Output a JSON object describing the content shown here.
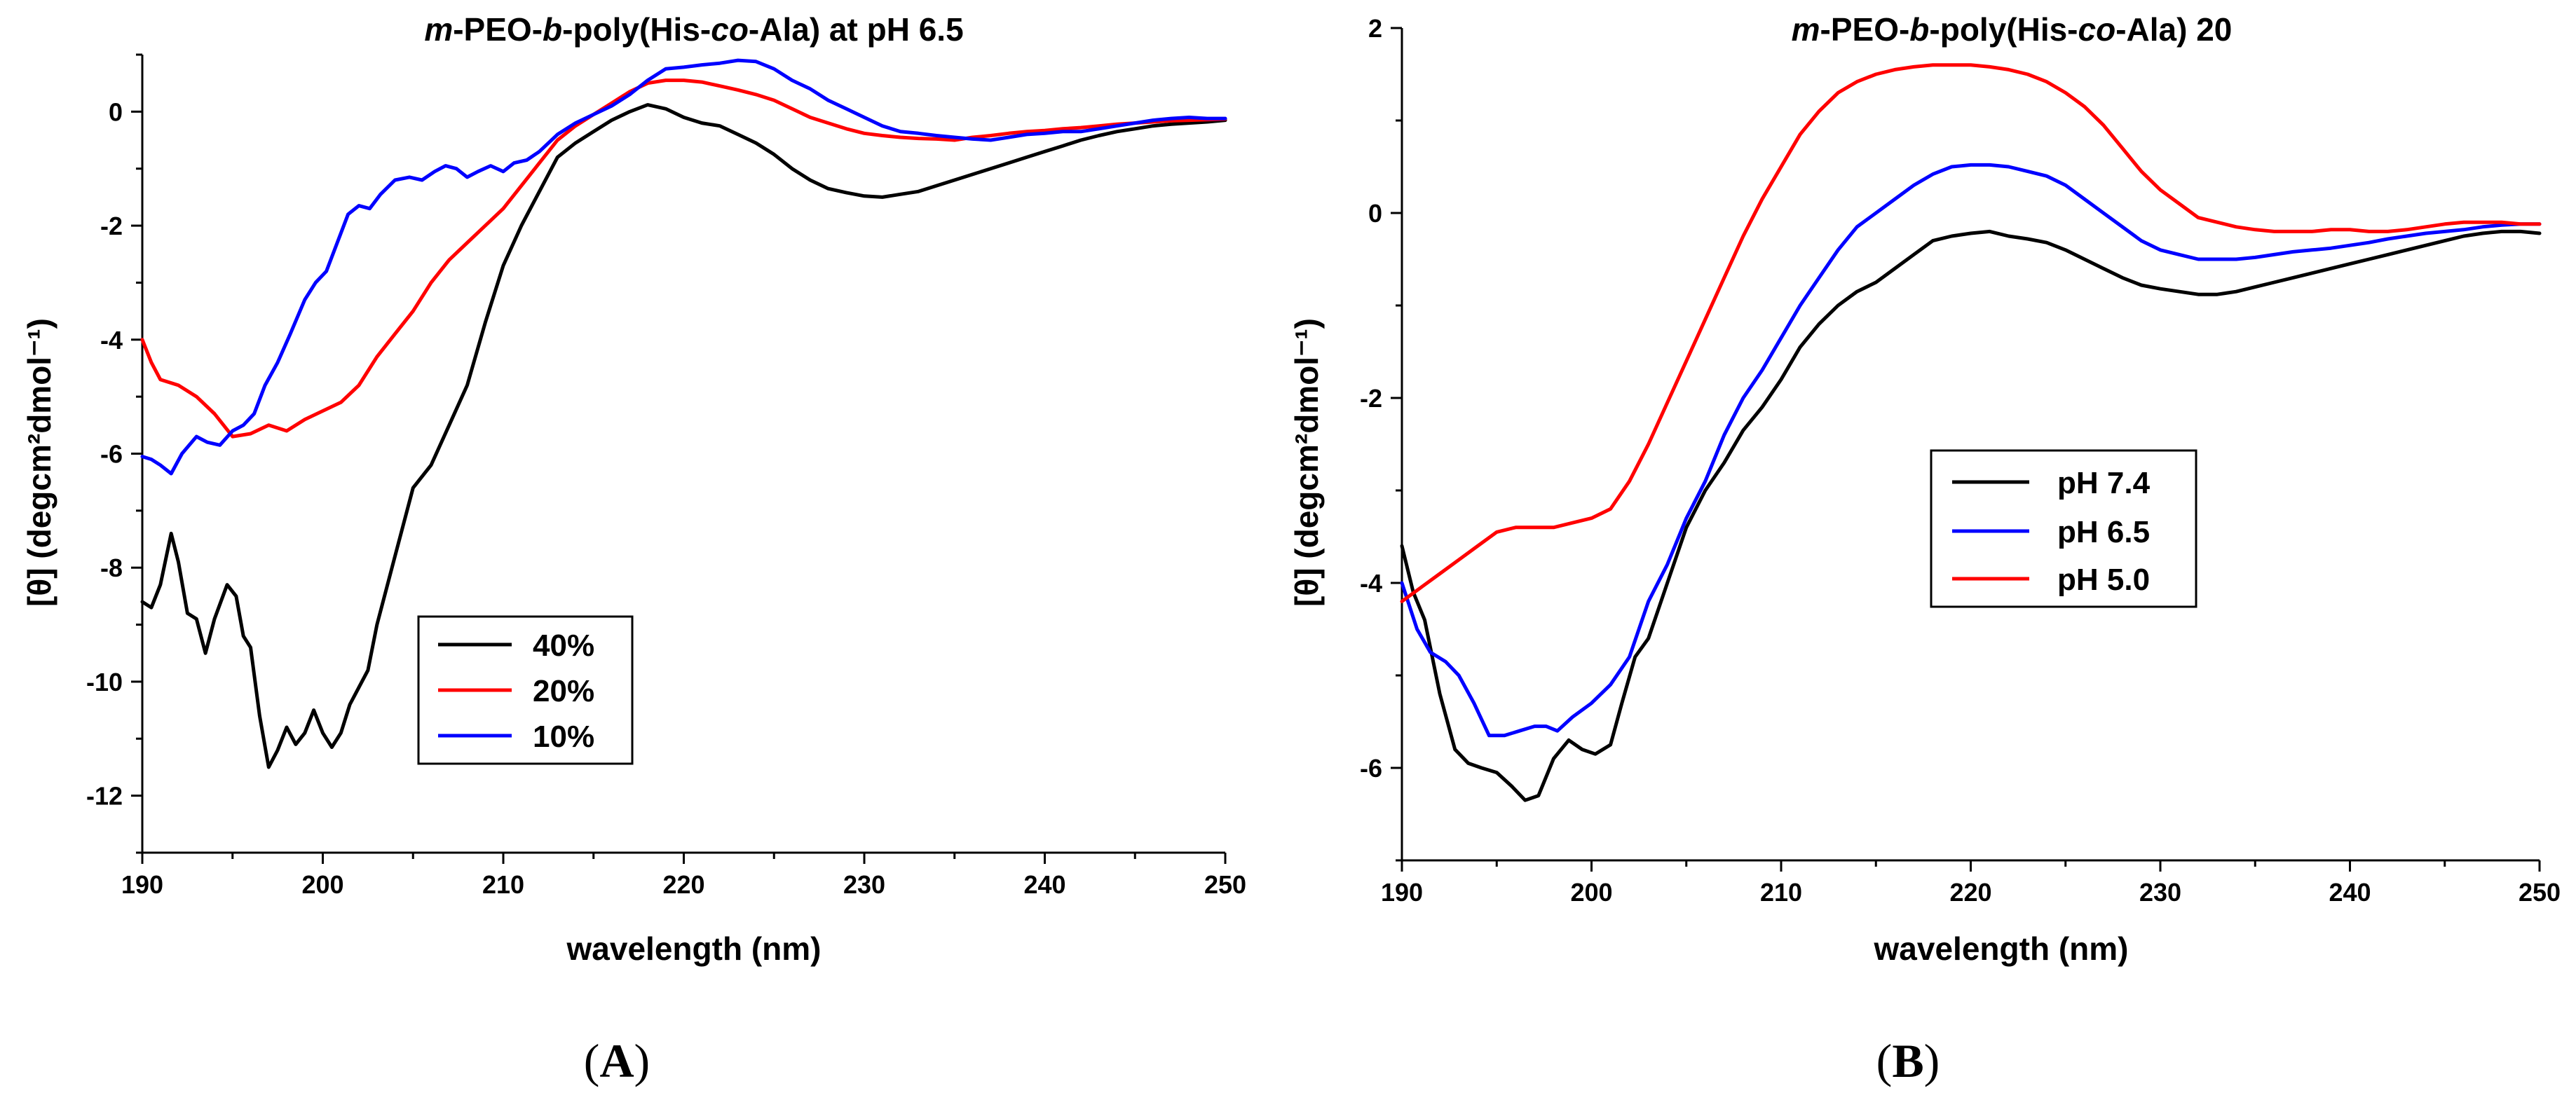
{
  "panels": [
    {
      "id": "A",
      "label": "A",
      "title": {
        "parts": [
          {
            "text": "m",
            "italic": true
          },
          {
            "text": "-PEO-",
            "italic": false
          },
          {
            "text": "b",
            "italic": true
          },
          {
            "text": "-poly(His-",
            "italic": false
          },
          {
            "text": "co",
            "italic": true
          },
          {
            "text": "-Ala) at pH 6.5",
            "italic": false
          }
        ]
      },
      "legend_position": "bottom-center",
      "legend_order": [
        "40%",
        "20%",
        "10%"
      ]
    },
    {
      "id": "B",
      "label": "B",
      "title": {
        "parts": [
          {
            "text": "m",
            "italic": true
          },
          {
            "text": "-PEO-",
            "italic": false
          },
          {
            "text": "b",
            "italic": true
          },
          {
            "text": "-poly(His-",
            "italic": false
          },
          {
            "text": "co",
            "italic": true
          },
          {
            "text": "-Ala) 20",
            "italic": false
          }
        ]
      },
      "legend_position": "center",
      "legend_order": [
        "pH 7.4",
        "pH 6.5",
        "pH 5.0"
      ]
    }
  ],
  "chart_data": [
    {
      "type": "line",
      "panel": "A",
      "title": "m-PEO-b-poly(His-co-Ala) at pH 6.5",
      "xlabel": "wavelength (nm)",
      "ylabel": "[θ] (degcm²dmol⁻¹)",
      "xlim": [
        190,
        250
      ],
      "ylim": [
        -13,
        1
      ],
      "xticks": [
        190,
        200,
        210,
        220,
        230,
        240,
        250
      ],
      "yticks": [
        -12,
        -10,
        -8,
        -6,
        -4,
        -2,
        0
      ],
      "grid": false,
      "series": [
        {
          "name": "40%",
          "color": "#000000",
          "x": [
            190,
            190.5,
            191,
            191.6,
            192,
            192.5,
            193,
            193.5,
            194,
            194.7,
            195.2,
            195.6,
            196,
            196.5,
            197,
            197.5,
            198,
            198.5,
            199,
            199.5,
            200,
            200.5,
            201,
            201.5,
            202,
            202.5,
            203,
            204,
            205,
            206,
            207,
            208,
            209,
            210,
            211,
            212,
            213,
            214,
            215,
            216,
            217,
            218,
            219,
            220,
            221,
            222,
            223,
            224,
            225,
            226,
            227,
            228,
            229,
            230,
            231,
            232,
            233,
            234,
            235,
            236,
            237,
            238,
            239,
            240,
            241,
            242,
            243,
            244,
            245,
            246,
            247,
            248,
            249,
            250
          ],
          "values": [
            -8.6,
            -8.7,
            -8.3,
            -7.4,
            -7.9,
            -8.8,
            -8.9,
            -9.5,
            -8.9,
            -8.3,
            -8.5,
            -9.2,
            -9.4,
            -10.6,
            -11.5,
            -11.2,
            -10.8,
            -11.1,
            -10.9,
            -10.5,
            -10.9,
            -11.15,
            -10.9,
            -10.4,
            -10.1,
            -9.8,
            -9.0,
            -7.8,
            -6.6,
            -6.2,
            -5.5,
            -4.8,
            -3.7,
            -2.7,
            -2.0,
            -1.4,
            -0.8,
            -0.55,
            -0.35,
            -0.15,
            0.0,
            0.12,
            0.05,
            -0.1,
            -0.2,
            -0.25,
            -0.4,
            -0.55,
            -0.75,
            -1.0,
            -1.2,
            -1.35,
            -1.42,
            -1.48,
            -1.5,
            -1.45,
            -1.4,
            -1.3,
            -1.2,
            -1.1,
            -1.0,
            -0.9,
            -0.8,
            -0.7,
            -0.6,
            -0.5,
            -0.42,
            -0.35,
            -0.3,
            -0.25,
            -0.22,
            -0.2,
            -0.18,
            -0.15
          ]
        },
        {
          "name": "20%",
          "color": "#ff0000",
          "x": [
            190,
            190.5,
            191,
            192,
            193,
            194,
            195,
            196,
            197,
            198,
            199,
            200,
            201,
            202,
            203,
            204,
            205,
            206,
            207,
            208,
            209,
            210,
            211,
            212,
            213,
            214,
            215,
            216,
            217,
            218,
            219,
            220,
            221,
            222,
            223,
            224,
            225,
            226,
            227,
            228,
            229,
            230,
            231,
            232,
            233,
            234,
            235,
            236,
            237,
            238,
            239,
            240,
            241,
            242,
            243,
            244,
            245,
            246,
            247,
            248,
            249,
            250
          ],
          "values": [
            -4.0,
            -4.4,
            -4.7,
            -4.8,
            -5.0,
            -5.3,
            -5.7,
            -5.65,
            -5.5,
            -5.6,
            -5.4,
            -5.25,
            -5.1,
            -4.8,
            -4.3,
            -3.9,
            -3.5,
            -3.0,
            -2.6,
            -2.3,
            -2.0,
            -1.7,
            -1.3,
            -0.9,
            -0.5,
            -0.25,
            -0.05,
            0.15,
            0.35,
            0.5,
            0.55,
            0.55,
            0.52,
            0.45,
            0.38,
            0.3,
            0.2,
            0.05,
            -0.1,
            -0.2,
            -0.3,
            -0.38,
            -0.42,
            -0.45,
            -0.47,
            -0.48,
            -0.5,
            -0.45,
            -0.42,
            -0.38,
            -0.35,
            -0.33,
            -0.3,
            -0.28,
            -0.25,
            -0.22,
            -0.2,
            -0.18,
            -0.16,
            -0.15,
            -0.14,
            -0.13
          ]
        },
        {
          "name": "10%",
          "color": "#0000ff",
          "x": [
            190,
            190.5,
            191,
            191.6,
            192.2,
            193,
            193.6,
            194.3,
            195,
            195.6,
            196.2,
            196.8,
            197.5,
            198.2,
            199,
            199.6,
            200.2,
            200.8,
            201.4,
            202,
            202.6,
            203.2,
            204,
            204.8,
            205.5,
            206.2,
            206.8,
            207.4,
            208,
            208.6,
            209.3,
            210,
            210.6,
            211.3,
            212,
            213,
            214,
            215,
            216,
            217,
            218,
            219,
            220,
            221,
            222,
            223,
            224,
            225,
            226,
            227,
            228,
            229,
            230,
            231,
            232,
            233,
            234,
            235,
            236,
            237,
            238,
            239,
            240,
            241,
            242,
            243,
            244,
            245,
            246,
            247,
            248,
            249,
            250
          ],
          "values": [
            -6.05,
            -6.1,
            -6.2,
            -6.35,
            -6.0,
            -5.7,
            -5.8,
            -5.85,
            -5.6,
            -5.5,
            -5.3,
            -4.8,
            -4.4,
            -3.9,
            -3.3,
            -3.0,
            -2.8,
            -2.3,
            -1.8,
            -1.65,
            -1.7,
            -1.45,
            -1.2,
            -1.15,
            -1.2,
            -1.05,
            -0.95,
            -1.0,
            -1.15,
            -1.05,
            -0.95,
            -1.05,
            -0.9,
            -0.85,
            -0.7,
            -0.4,
            -0.2,
            -0.05,
            0.1,
            0.3,
            0.55,
            0.75,
            0.78,
            0.82,
            0.85,
            0.9,
            0.88,
            0.75,
            0.55,
            0.4,
            0.2,
            0.05,
            -0.1,
            -0.25,
            -0.35,
            -0.38,
            -0.42,
            -0.45,
            -0.48,
            -0.5,
            -0.45,
            -0.4,
            -0.38,
            -0.35,
            -0.35,
            -0.3,
            -0.25,
            -0.2,
            -0.15,
            -0.12,
            -0.1,
            -0.12,
            -0.12
          ]
        }
      ]
    },
    {
      "type": "line",
      "panel": "B",
      "title": "m-PEO-b-poly(His-co-Ala) 20",
      "xlabel": "wavelength (nm)",
      "ylabel": "[θ] (degcm²dmol⁻¹)",
      "xlim": [
        190,
        250
      ],
      "ylim": [
        -7,
        2
      ],
      "xticks": [
        190,
        200,
        210,
        220,
        230,
        240,
        250
      ],
      "yticks": [
        -6,
        -4,
        -2,
        0,
        2
      ],
      "grid": false,
      "series": [
        {
          "name": "pH 7.4",
          "color": "#000000",
          "x": [
            190,
            190.6,
            191.2,
            192,
            192.8,
            193.5,
            194.2,
            195,
            195.8,
            196.5,
            197.2,
            198,
            198.8,
            199.5,
            200.2,
            201,
            201.6,
            202.3,
            203,
            204,
            205,
            206,
            207,
            208,
            209,
            210,
            211,
            212,
            213,
            214,
            215,
            216,
            217,
            218,
            219,
            220,
            221,
            222,
            223,
            224,
            225,
            226,
            227,
            228,
            229,
            230,
            231,
            232,
            233,
            234,
            235,
            236,
            237,
            238,
            239,
            240,
            241,
            242,
            243,
            244,
            245,
            246,
            247,
            248,
            249,
            250
          ],
          "values": [
            -3.6,
            -4.1,
            -4.4,
            -5.2,
            -5.8,
            -5.95,
            -6.0,
            -6.05,
            -6.2,
            -6.35,
            -6.3,
            -5.9,
            -5.7,
            -5.8,
            -5.85,
            -5.75,
            -5.3,
            -4.8,
            -4.6,
            -4.0,
            -3.4,
            -3.0,
            -2.7,
            -2.35,
            -2.1,
            -1.8,
            -1.45,
            -1.2,
            -1.0,
            -0.85,
            -0.75,
            -0.6,
            -0.45,
            -0.3,
            -0.25,
            -0.22,
            -0.2,
            -0.25,
            -0.28,
            -0.32,
            -0.4,
            -0.5,
            -0.6,
            -0.7,
            -0.78,
            -0.82,
            -0.85,
            -0.88,
            -0.88,
            -0.85,
            -0.8,
            -0.75,
            -0.7,
            -0.65,
            -0.6,
            -0.55,
            -0.5,
            -0.45,
            -0.4,
            -0.35,
            -0.3,
            -0.25,
            -0.22,
            -0.2,
            -0.2,
            -0.22
          ]
        },
        {
          "name": "pH 6.5",
          "color": "#0000ff",
          "x": [
            190,
            190.8,
            191.5,
            192.3,
            193,
            193.8,
            194.6,
            195.4,
            196.2,
            197,
            197.6,
            198.2,
            199,
            200,
            201,
            202,
            203,
            204,
            205,
            206,
            207,
            208,
            209,
            210,
            211,
            212,
            213,
            214,
            215,
            216,
            217,
            218,
            219,
            220,
            221,
            222,
            223,
            224,
            225,
            226,
            227,
            228,
            229,
            230,
            231,
            232,
            233,
            234,
            235,
            236,
            237,
            238,
            239,
            240,
            241,
            242,
            243,
            244,
            245,
            246,
            247,
            248,
            249,
            250
          ],
          "values": [
            -4.0,
            -4.5,
            -4.75,
            -4.85,
            -5.0,
            -5.3,
            -5.65,
            -5.65,
            -5.6,
            -5.55,
            -5.55,
            -5.6,
            -5.45,
            -5.3,
            -5.1,
            -4.8,
            -4.2,
            -3.8,
            -3.3,
            -2.9,
            -2.4,
            -2.0,
            -1.7,
            -1.35,
            -1.0,
            -0.7,
            -0.4,
            -0.15,
            0.0,
            0.15,
            0.3,
            0.42,
            0.5,
            0.52,
            0.52,
            0.5,
            0.45,
            0.4,
            0.3,
            0.15,
            0.0,
            -0.15,
            -0.3,
            -0.4,
            -0.45,
            -0.5,
            -0.5,
            -0.5,
            -0.48,
            -0.45,
            -0.42,
            -0.4,
            -0.38,
            -0.35,
            -0.32,
            -0.28,
            -0.25,
            -0.22,
            -0.2,
            -0.18,
            -0.15,
            -0.13,
            -0.12,
            -0.12
          ]
        },
        {
          "name": "pH 5.0",
          "color": "#ff0000",
          "x": [
            190,
            191,
            192,
            193,
            194,
            195,
            196,
            197,
            198,
            199,
            200,
            201,
            202,
            203,
            204,
            205,
            206,
            207,
            208,
            209,
            210,
            211,
            212,
            213,
            214,
            215,
            216,
            217,
            218,
            219,
            220,
            221,
            222,
            223,
            224,
            225,
            226,
            227,
            228,
            229,
            230,
            231,
            232,
            233,
            234,
            235,
            236,
            237,
            238,
            239,
            240,
            241,
            242,
            243,
            244,
            245,
            246,
            247,
            248,
            249,
            250
          ],
          "values": [
            -4.2,
            -4.05,
            -3.9,
            -3.75,
            -3.6,
            -3.45,
            -3.4,
            -3.4,
            -3.4,
            -3.35,
            -3.3,
            -3.2,
            -2.9,
            -2.5,
            -2.05,
            -1.6,
            -1.15,
            -0.7,
            -0.25,
            0.15,
            0.5,
            0.85,
            1.1,
            1.3,
            1.42,
            1.5,
            1.55,
            1.58,
            1.6,
            1.6,
            1.6,
            1.58,
            1.55,
            1.5,
            1.42,
            1.3,
            1.15,
            0.95,
            0.7,
            0.45,
            0.25,
            0.1,
            -0.05,
            -0.1,
            -0.15,
            -0.18,
            -0.2,
            -0.2,
            -0.2,
            -0.18,
            -0.18,
            -0.2,
            -0.2,
            -0.18,
            -0.15,
            -0.12,
            -0.1,
            -0.1,
            -0.1,
            -0.12,
            -0.12
          ]
        }
      ]
    }
  ]
}
